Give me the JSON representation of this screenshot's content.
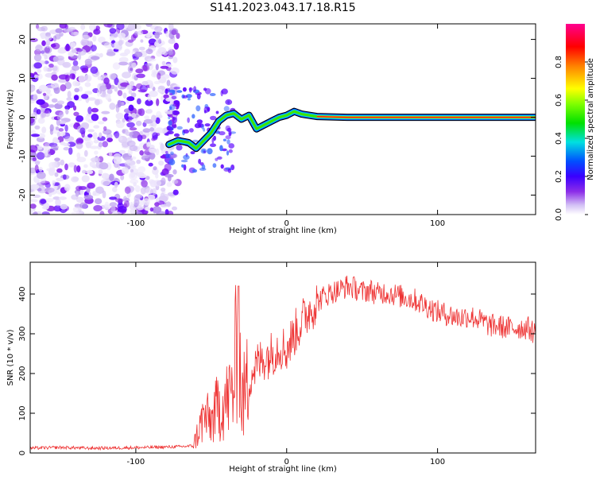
{
  "title": "S141.2023.043.17.18.R15",
  "chart_data": [
    {
      "type": "heatmap",
      "xlabel": "Height of straight line (km)",
      "ylabel": "Frequency (Hz)",
      "xlim": [
        -170,
        165
      ],
      "ylim": [
        -25,
        24
      ],
      "xticks": [
        -100,
        0,
        100
      ],
      "yticks": [
        -20,
        -10,
        0,
        10,
        20
      ],
      "grid": false,
      "colorbar": {
        "label": "Normalized spectral amplitude",
        "range": [
          0,
          1
        ],
        "ticks": [
          "0.0",
          "0.2",
          "0.4",
          "0.6",
          "0.8"
        ],
        "tick_values": [
          0.0,
          0.2,
          0.4,
          0.6,
          0.8
        ],
        "colormap": "hsv-rainbow",
        "colors": [
          "#ffffff",
          "#d3c0f5",
          "#8c2ee8",
          "#3a00ff",
          "#0050ff",
          "#00e0e0",
          "#00e000",
          "#80ff00",
          "#ffff00",
          "#ff8000",
          "#ff0000",
          "#ff0090"
        ]
      },
      "ridge": {
        "description_x": [
          -78,
          -72,
          -65,
          -60,
          -55,
          -50,
          -45,
          -40,
          -35,
          -30,
          -25,
          -20,
          -15,
          -10,
          -5,
          0,
          5,
          10,
          20,
          40,
          60,
          80,
          100,
          120,
          140,
          165
        ],
        "frequency_y": [
          -7,
          -6,
          -6.5,
          -8,
          -6,
          -4,
          -1,
          0.5,
          1.0,
          -0.5,
          0.5,
          -3,
          -2,
          -1,
          0,
          0.5,
          1.5,
          0.8,
          0.2,
          0.0,
          0.0,
          0.0,
          0.0,
          0.0,
          0.0,
          0.0
        ]
      },
      "noise_region_x": [
        -170,
        -72
      ]
    },
    {
      "type": "line",
      "xlabel": "Height of straight line (km)",
      "ylabel": "SNR (10 * v/v)",
      "xlim": [
        -170,
        165
      ],
      "ylim": [
        0,
        480
      ],
      "xticks": [
        -100,
        0,
        100
      ],
      "yticks": [
        0,
        100,
        200,
        300,
        400
      ],
      "grid": false,
      "series": [
        {
          "color": "#ee3333",
          "x": [
            -170,
            -150,
            -130,
            -110,
            -90,
            -70,
            -62,
            -58,
            -55,
            -50,
            -45,
            -40,
            -35,
            -32,
            -30,
            -25,
            -20,
            -15,
            -10,
            -5,
            0,
            5,
            10,
            15,
            20,
            25,
            30,
            35,
            40,
            45,
            50,
            55,
            60,
            65,
            70,
            75,
            80,
            85,
            90,
            95,
            100,
            105,
            110,
            115,
            120,
            125,
            130,
            135,
            140,
            145,
            150,
            155,
            160,
            165
          ],
          "values": [
            12,
            14,
            12,
            13,
            14,
            16,
            18,
            60,
            90,
            80,
            120,
            130,
            160,
            350,
            120,
            190,
            220,
            240,
            250,
            270,
            260,
            300,
            330,
            360,
            380,
            395,
            405,
            410,
            420,
            415,
            405,
            410,
            400,
            405,
            400,
            395,
            390,
            385,
            375,
            365,
            355,
            350,
            345,
            340,
            345,
            340,
            330,
            320,
            320,
            315,
            315,
            315,
            315,
            300
          ]
        }
      ]
    }
  ]
}
